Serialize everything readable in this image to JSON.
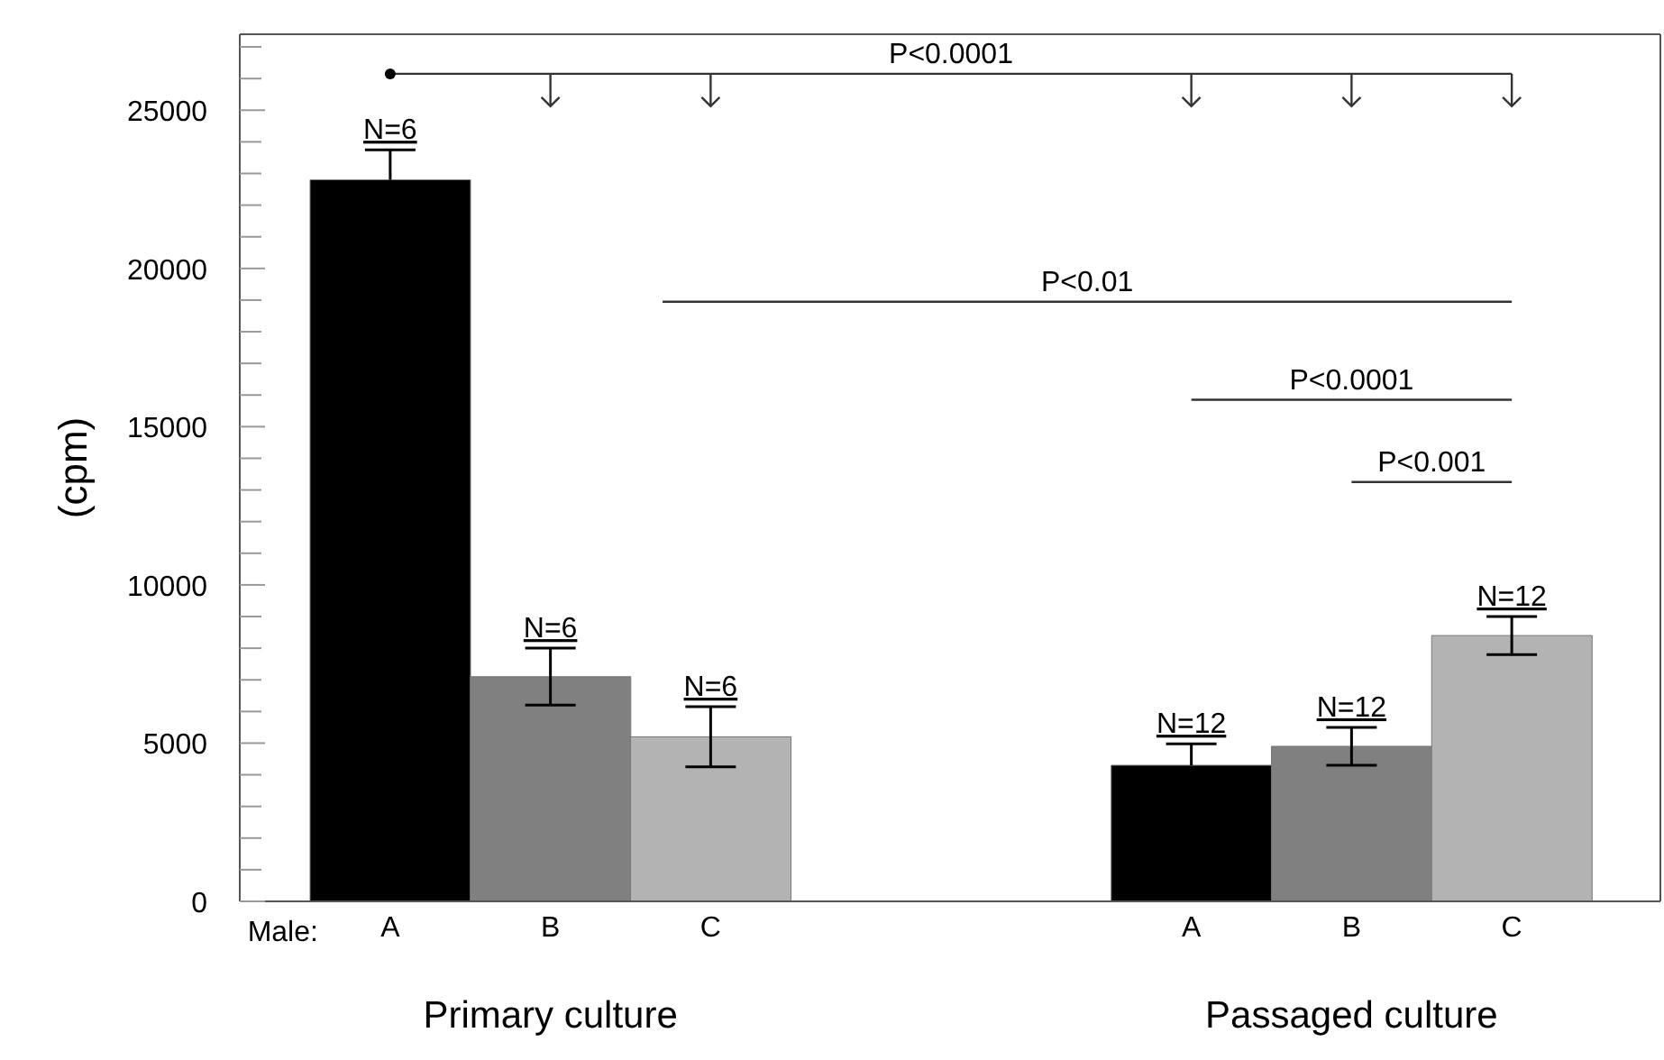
{
  "chart_data": {
    "type": "bar",
    "ylabel": "(cpm)",
    "categories": [
      "A",
      "B",
      "C",
      null,
      null,
      "A",
      "B",
      "C"
    ],
    "values": [
      22800,
      7100,
      5200,
      null,
      null,
      4300,
      4900,
      8400
    ],
    "errors": [
      [
        22800,
        23750
      ],
      [
        6200,
        8000
      ],
      [
        4250,
        6150
      ],
      null,
      null,
      [
        4300,
        4980
      ],
      [
        4300,
        5500
      ],
      [
        7800,
        9000
      ]
    ],
    "colors": [
      "#000000",
      "#808080",
      "#b3b3b3",
      "#000000",
      "#000000",
      "#000000",
      "#808080",
      "#b3b3b3"
    ],
    "ylim": [
      0,
      27400
    ],
    "yticks": [
      0,
      {
        "value": 1000,
        "label": null
      },
      {
        "value": 2000,
        "label": null
      },
      {
        "value": 3000,
        "label": null
      },
      {
        "value": 4000,
        "label": null
      },
      5000,
      {
        "value": 6000,
        "label": null
      },
      {
        "value": 7000,
        "label": null
      },
      {
        "value": 8000,
        "label": null
      },
      {
        "value": 9000,
        "label": null
      },
      10000,
      {
        "value": 11000,
        "label": null
      },
      {
        "value": 12000,
        "label": null
      },
      {
        "value": 13000,
        "label": null
      },
      {
        "value": 14000,
        "label": null
      },
      15000,
      {
        "value": 16000,
        "label": null
      },
      {
        "value": 17000,
        "label": null
      },
      {
        "value": 18000,
        "label": null
      },
      {
        "value": 19000,
        "label": null
      },
      20000,
      {
        "value": 21000,
        "label": null
      },
      {
        "value": 22000,
        "label": null
      },
      {
        "value": 23000,
        "label": null
      },
      {
        "value": 24000,
        "label": null
      },
      25000,
      {
        "value": 26000,
        "label": null
      },
      {
        "value": 27000,
        "label": null
      }
    ],
    "grid": false,
    "legend": false,
    "annotations": [
      "P<0.0001",
      "P<0.01",
      "P<0.0001",
      "P<0.001",
      "Male:",
      "Primary culture",
      "Passaged culture",
      "N=6",
      "N=6",
      "N=6",
      "N=12",
      "N=12",
      "N=12"
    ]
  }
}
